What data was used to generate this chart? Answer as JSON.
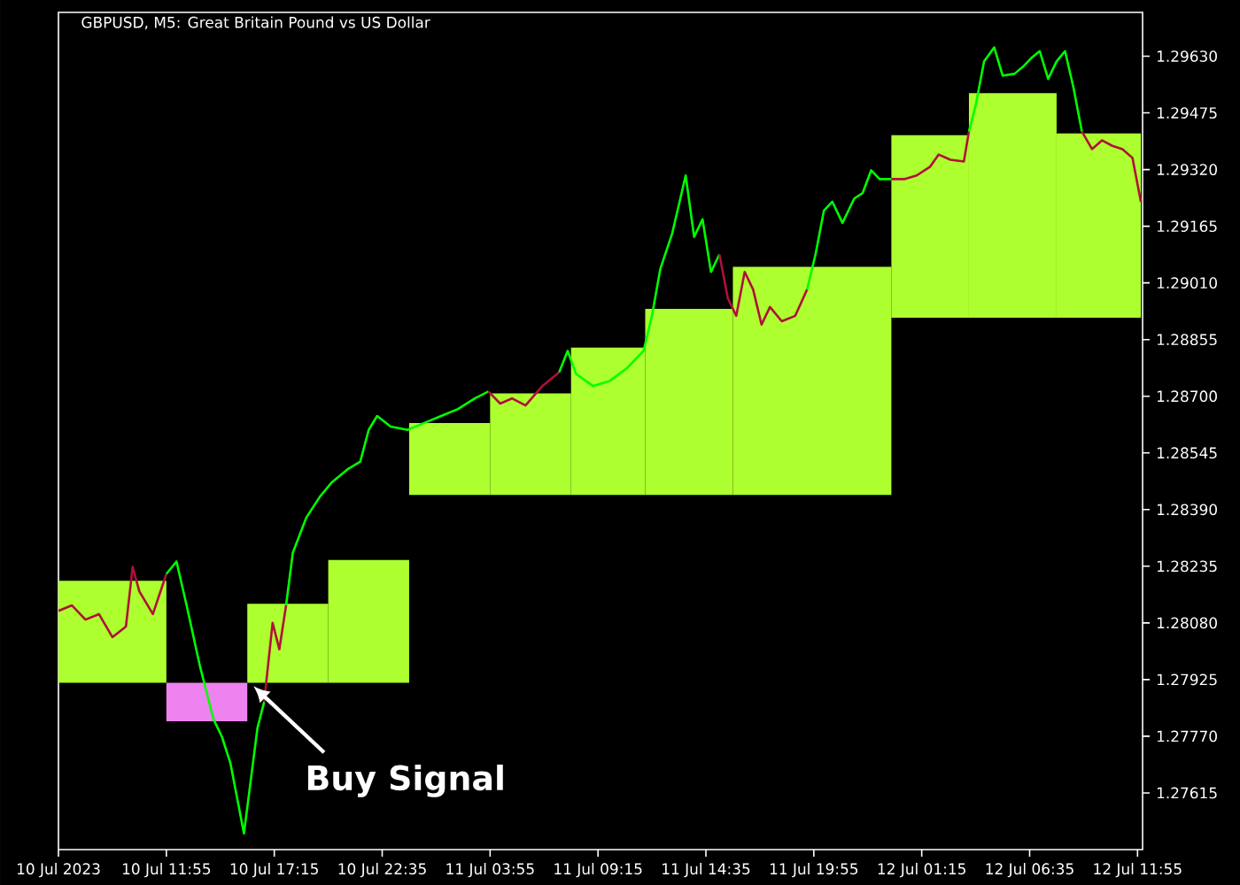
{
  "chart_data": {
    "type": "line",
    "title": "GBPUSD, M5:  Great Britain Pound vs US Dollar",
    "xlim": [
      "2023-07-10T06:35",
      "2023-07-12T12:10"
    ],
    "ylim": [
      1.2746,
      1.2975
    ],
    "xticks": [
      {
        "value": "2023-07-10T06:35",
        "label": "10 Jul 2023"
      },
      {
        "value": "2023-07-10T11:55",
        "label": "10 Jul 11:55"
      },
      {
        "value": "2023-07-10T17:15",
        "label": "10 Jul 17:15"
      },
      {
        "value": "2023-07-10T22:35",
        "label": "10 Jul 22:35"
      },
      {
        "value": "2023-07-11T03:55",
        "label": "11 Jul 03:55"
      },
      {
        "value": "2023-07-11T09:15",
        "label": "11 Jul 09:15"
      },
      {
        "value": "2023-07-11T14:35",
        "label": "11 Jul 14:35"
      },
      {
        "value": "2023-07-11T19:55",
        "label": "11 Jul 19:55"
      },
      {
        "value": "2023-07-12T01:15",
        "label": "12 Jul 01:15"
      },
      {
        "value": "2023-07-12T06:35",
        "label": "12 Jul 06:35"
      },
      {
        "value": "2023-07-12T11:55",
        "label": "12 Jul 11:55"
      }
    ],
    "yticks": [
      {
        "value": 1.27615,
        "label": "1.27615"
      },
      {
        "value": 1.2777,
        "label": "1.27770"
      },
      {
        "value": 1.27925,
        "label": "1.27925"
      },
      {
        "value": 1.2808,
        "label": "1.28080"
      },
      {
        "value": 1.28235,
        "label": "1.28235"
      },
      {
        "value": 1.2839,
        "label": "1.28390"
      },
      {
        "value": 1.28545,
        "label": "1.28545"
      },
      {
        "value": 1.287,
        "label": "1.28700"
      },
      {
        "value": 1.28855,
        "label": "1.28855"
      },
      {
        "value": 1.2901,
        "label": "1.29010"
      },
      {
        "value": 1.29165,
        "label": "1.29165"
      },
      {
        "value": 1.2932,
        "label": "1.29320"
      },
      {
        "value": 1.29475,
        "label": "1.29475"
      },
      {
        "value": 1.2963,
        "label": "1.29630"
      }
    ],
    "series": [
      {
        "type": "bar",
        "x": [
          "2023-07-10T09:15",
          "2023-07-10T13:55",
          "2023-07-10T17:55",
          "2023-07-10T21:55",
          "2023-07-11T01:55",
          "2023-07-11T05:55",
          "2023-07-11T09:45",
          "2023-07-11T13:45",
          "2023-07-11T19:50",
          "2023-07-12T01:40",
          "2023-07-12T05:45",
          "2023-07-12T10:00"
        ],
        "base": [
          1.27916,
          1.27811,
          1.27916,
          1.27916,
          1.2843,
          1.2843,
          1.2843,
          1.2843,
          1.2843,
          1.28915,
          1.28915,
          1.28915
        ],
        "values": [
          0.00279,
          0.00105,
          0.00216,
          0.00336,
          0.00197,
          0.00278,
          0.00403,
          0.00509,
          0.00624,
          0.00499,
          0.00614,
          0.00504
        ],
        "colors": [
          "#adff2f",
          "#ee82ee",
          "#adff2f",
          "#adff2f",
          "#adff2f",
          "#adff2f",
          "#adff2f",
          "#adff2f",
          "#adff2f",
          "#adff2f",
          "#adff2f",
          "#adff2f"
        ]
      },
      {
        "color": "#b0103a",
        "x": [
          "2023-07-10T06:35",
          "2023-07-10T07:15",
          "2023-07-10T07:55",
          "2023-07-10T08:35",
          "2023-07-10T09:15",
          "2023-07-10T09:55",
          "2023-07-10T10:15",
          "2023-07-10T10:35",
          "2023-07-10T11:15",
          "2023-07-10T11:55"
        ],
        "values": [
          1.28113,
          1.28128,
          1.28089,
          1.28104,
          1.28041,
          1.2807,
          1.28233,
          1.28166,
          1.28104,
          1.28214
        ]
      },
      {
        "color": "#00ff00",
        "x": [
          "2023-07-10T11:55",
          "2023-07-10T12:25",
          "2023-07-10T12:55",
          "2023-07-10T13:35",
          "2023-07-10T14:15",
          "2023-07-10T14:40",
          "2023-07-10T15:05",
          "2023-07-10T15:30",
          "2023-07-10T15:45",
          "2023-07-10T16:05",
          "2023-07-10T16:25",
          "2023-07-10T16:45"
        ],
        "values": [
          1.28214,
          1.28248,
          1.28128,
          1.2796,
          1.27816,
          1.27768,
          1.27696,
          1.27576,
          1.27504,
          1.27648,
          1.27792,
          1.27864
        ]
      },
      {
        "color": "#b0103a",
        "x": [
          "2023-07-10T16:45",
          "2023-07-10T17:10",
          "2023-07-10T17:30",
          "2023-07-10T17:50"
        ],
        "values": [
          1.27864,
          1.2808,
          1.28008,
          1.28128
        ]
      },
      {
        "color": "#00ff00",
        "x": [
          "2023-07-10T17:50",
          "2023-07-10T18:10",
          "2023-07-10T18:50",
          "2023-07-10T19:30",
          "2023-07-10T20:05",
          "2023-07-10T20:55",
          "2023-07-10T21:30",
          "2023-07-10T21:55",
          "2023-07-10T22:20",
          "2023-07-10T23:00",
          "2023-07-10T23:50",
          "2023-07-11T00:40",
          "2023-07-11T01:30",
          "2023-07-11T02:20",
          "2023-07-11T03:10",
          "2023-07-11T03:50"
        ],
        "values": [
          1.28128,
          1.28272,
          1.28368,
          1.28425,
          1.28464,
          1.28502,
          1.28521,
          1.28608,
          1.28646,
          1.28617,
          1.28608,
          1.28627,
          1.28646,
          1.28665,
          1.28694,
          1.28713
        ]
      },
      {
        "color": "#b0103a",
        "x": [
          "2023-07-11T03:50",
          "2023-07-11T04:25",
          "2023-07-11T05:00",
          "2023-07-11T05:40",
          "2023-07-11T06:30",
          "2023-07-11T07:20"
        ],
        "values": [
          1.28713,
          1.2868,
          1.28694,
          1.28675,
          1.28728,
          1.28766
        ]
      },
      {
        "color": "#00ff00",
        "x": [
          "2023-07-11T07:20",
          "2023-07-11T07:45",
          "2023-07-11T08:10",
          "2023-07-11T09:00",
          "2023-07-11T09:50",
          "2023-07-11T10:40",
          "2023-07-11T11:30",
          "2023-07-11T11:55",
          "2023-07-11T12:20",
          "2023-07-11T12:55",
          "2023-07-11T13:35",
          "2023-07-11T14:00",
          "2023-07-11T14:25",
          "2023-07-11T14:50",
          "2023-07-11T15:15"
        ],
        "values": [
          1.28766,
          1.28824,
          1.28761,
          1.28728,
          1.28742,
          1.28776,
          1.28824,
          1.2892,
          1.29049,
          1.29145,
          1.29304,
          1.29136,
          1.29184,
          1.2904,
          1.29088
        ]
      },
      {
        "color": "#b0103a",
        "x": [
          "2023-07-11T15:15",
          "2023-07-11T15:40",
          "2023-07-11T16:05",
          "2023-07-11T16:30",
          "2023-07-11T16:55",
          "2023-07-11T17:20",
          "2023-07-11T17:45",
          "2023-07-11T18:20",
          "2023-07-11T19:00",
          "2023-07-11T19:35"
        ],
        "values": [
          1.29088,
          1.28968,
          1.2892,
          1.2904,
          1.28992,
          1.28896,
          1.28944,
          1.28905,
          1.2892,
          1.28992
        ]
      },
      {
        "color": "#00ff00",
        "x": [
          "2023-07-11T19:35",
          "2023-07-11T20:00",
          "2023-07-11T20:25",
          "2023-07-11T20:50",
          "2023-07-11T21:20",
          "2023-07-11T21:55",
          "2023-07-11T22:20",
          "2023-07-11T22:45",
          "2023-07-11T23:10",
          "2023-07-11T23:45"
        ],
        "values": [
          1.28992,
          1.29088,
          1.29208,
          1.29232,
          1.29174,
          1.29241,
          1.29256,
          1.29318,
          1.29294,
          1.29294
        ]
      },
      {
        "color": "#b0103a",
        "x": [
          "2023-07-11T23:45",
          "2023-07-12T00:25",
          "2023-07-12T01:00",
          "2023-07-12T01:40",
          "2023-07-12T02:05",
          "2023-07-12T02:40",
          "2023-07-12T03:20",
          "2023-07-12T03:35"
        ],
        "values": [
          1.29294,
          1.29294,
          1.29304,
          1.29328,
          1.29361,
          1.29347,
          1.29342,
          1.29424
        ]
      },
      {
        "color": "#00ff00",
        "x": [
          "2023-07-12T03:35",
          "2023-07-12T03:55",
          "2023-07-12T04:20",
          "2023-07-12T04:50",
          "2023-07-12T05:15",
          "2023-07-12T05:50",
          "2023-07-12T06:15",
          "2023-07-12T06:40",
          "2023-07-12T07:05",
          "2023-07-12T07:30",
          "2023-07-12T07:55",
          "2023-07-12T08:20",
          "2023-07-12T08:45",
          "2023-07-12T09:10"
        ],
        "values": [
          1.29424,
          1.29496,
          1.29616,
          1.29654,
          1.29577,
          1.29582,
          1.29601,
          1.29625,
          1.29644,
          1.29568,
          1.29616,
          1.29644,
          1.29544,
          1.29424
        ]
      },
      {
        "color": "#b0103a",
        "x": [
          "2023-07-12T09:10",
          "2023-07-12T09:40",
          "2023-07-12T10:10",
          "2023-07-12T10:40",
          "2023-07-12T11:10",
          "2023-07-12T11:40",
          "2023-07-12T12:05"
        ],
        "values": [
          1.29424,
          1.29376,
          1.294,
          1.29385,
          1.29376,
          1.29352,
          1.29232
        ]
      }
    ],
    "annotations": [
      "Buy Signal"
    ]
  }
}
